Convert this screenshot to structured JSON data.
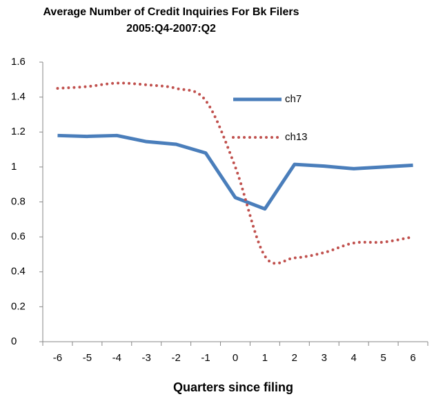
{
  "chart_data": {
    "type": "line",
    "title": "Average Number of Credit Inquiries For Bk Filers",
    "subtitle": "2005:Q4-2007:Q2",
    "x_label": "Quarters since filing",
    "categories": [
      "-6",
      "-5",
      "-4",
      "-3",
      "-2",
      "-1",
      "0",
      "1",
      "2",
      "3",
      "4",
      "5",
      "6"
    ],
    "series": [
      {
        "name": "ch7",
        "color": "#4a7ebb",
        "style": "solid",
        "smooth": false,
        "values": [
          1.18,
          1.175,
          1.18,
          1.145,
          1.13,
          1.08,
          0.825,
          0.76,
          1.015,
          1.005,
          0.99,
          1.0,
          1.01
        ]
      },
      {
        "name": "ch13",
        "color": "#c0504d",
        "style": "dotted",
        "smooth": true,
        "values": [
          1.45,
          1.46,
          1.48,
          1.47,
          1.45,
          1.38,
          1.0,
          0.49,
          0.48,
          0.51,
          0.565,
          0.57,
          0.6
        ]
      }
    ],
    "ylim": [
      0,
      1.6
    ],
    "yticks": [
      0,
      0.2,
      0.4,
      0.6,
      0.8,
      1,
      1.2,
      1.4,
      1.6
    ],
    "grid": false,
    "legend": "right"
  }
}
